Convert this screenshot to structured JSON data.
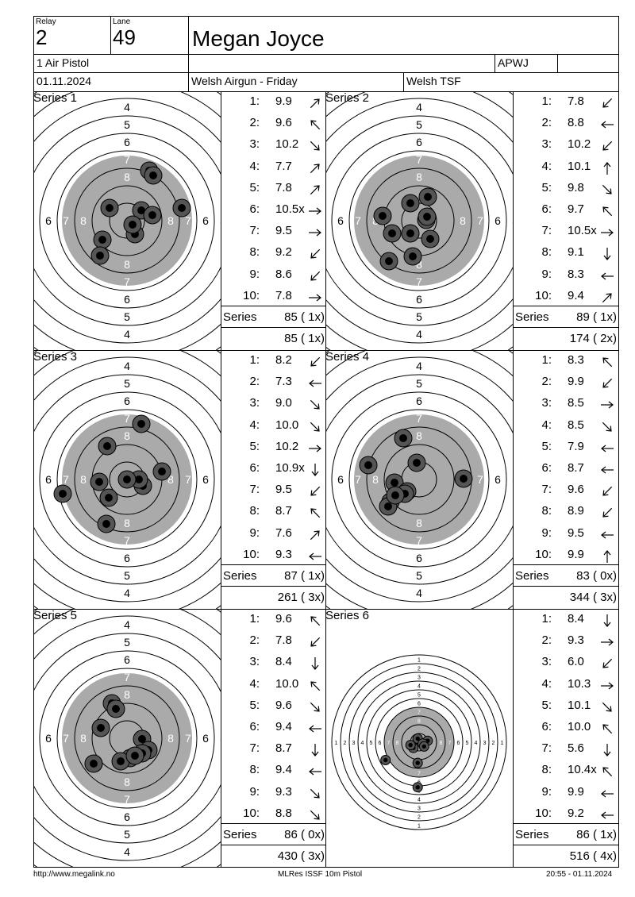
{
  "header": {
    "relay_label": "Relay",
    "relay": "2",
    "lane_label": "Lane",
    "lane": "49",
    "shooter_name": "Megan Joyce",
    "discipline": "1 Air Pistol",
    "club_code": "APWJ",
    "date": "01.11.2024",
    "competition": "Welsh Airgun - Friday",
    "organizer": "Welsh TSF"
  },
  "series": [
    {
      "title": "Series 1",
      "shots": [
        {
          "n": "1:",
          "v": "9.9",
          "dir": "ne"
        },
        {
          "n": "2:",
          "v": "9.6",
          "dir": "nw"
        },
        {
          "n": "3:",
          "v": "10.2",
          "dir": "se"
        },
        {
          "n": "4:",
          "v": "7.7",
          "dir": "ne"
        },
        {
          "n": "5:",
          "v": "7.8",
          "dir": "ne"
        },
        {
          "n": "6:",
          "v": "10.5x",
          "dir": "e"
        },
        {
          "n": "7:",
          "v": "9.5",
          "dir": "e"
        },
        {
          "n": "8:",
          "v": "9.2",
          "dir": "sw"
        },
        {
          "n": "9:",
          "v": "8.6",
          "dir": "sw"
        },
        {
          "n": "10:",
          "v": "7.8",
          "dir": "e"
        }
      ],
      "series_label": "Series",
      "series_total": "85 ( 1x)",
      "running_total": "85 ( 1x)"
    },
    {
      "title": "Series 2",
      "shots": [
        {
          "n": "1:",
          "v": "7.8",
          "dir": "sw"
        },
        {
          "n": "2:",
          "v": "8.8",
          "dir": "w"
        },
        {
          "n": "3:",
          "v": "10.2",
          "dir": "sw"
        },
        {
          "n": "4:",
          "v": "10.1",
          "dir": "n"
        },
        {
          "n": "5:",
          "v": "9.8",
          "dir": "se"
        },
        {
          "n": "6:",
          "v": "9.7",
          "dir": "nw"
        },
        {
          "n": "7:",
          "v": "10.5x",
          "dir": "e"
        },
        {
          "n": "8:",
          "v": "9.1",
          "dir": "s"
        },
        {
          "n": "9:",
          "v": "8.3",
          "dir": "w"
        },
        {
          "n": "10:",
          "v": "9.4",
          "dir": "ne"
        }
      ],
      "series_label": "Series",
      "series_total": "89 ( 1x)",
      "running_total": "174 ( 2x)"
    },
    {
      "title": "Series 3",
      "shots": [
        {
          "n": "1:",
          "v": "8.2",
          "dir": "sw"
        },
        {
          "n": "2:",
          "v": "7.3",
          "dir": "w"
        },
        {
          "n": "3:",
          "v": "9.0",
          "dir": "se"
        },
        {
          "n": "4:",
          "v": "10.0",
          "dir": "se"
        },
        {
          "n": "5:",
          "v": "10.2",
          "dir": "e"
        },
        {
          "n": "6:",
          "v": "10.9x",
          "dir": "s"
        },
        {
          "n": "7:",
          "v": "9.5",
          "dir": "sw"
        },
        {
          "n": "8:",
          "v": "8.7",
          "dir": "nw"
        },
        {
          "n": "9:",
          "v": "7.6",
          "dir": "ne"
        },
        {
          "n": "10:",
          "v": "9.3",
          "dir": "w"
        }
      ],
      "series_label": "Series",
      "series_total": "87 ( 1x)",
      "running_total": "261 ( 3x)"
    },
    {
      "title": "Series 4",
      "shots": [
        {
          "n": "1:",
          "v": "8.3",
          "dir": "nw"
        },
        {
          "n": "2:",
          "v": "9.9",
          "dir": "sw"
        },
        {
          "n": "3:",
          "v": "8.5",
          "dir": "e"
        },
        {
          "n": "4:",
          "v": "8.5",
          "dir": "se"
        },
        {
          "n": "5:",
          "v": "7.9",
          "dir": "w"
        },
        {
          "n": "6:",
          "v": "8.7",
          "dir": "w"
        },
        {
          "n": "7:",
          "v": "9.6",
          "dir": "sw"
        },
        {
          "n": "8:",
          "v": "8.9",
          "dir": "sw"
        },
        {
          "n": "9:",
          "v": "9.5",
          "dir": "w"
        },
        {
          "n": "10:",
          "v": "9.9",
          "dir": "n"
        }
      ],
      "series_label": "Series",
      "series_total": "83 ( 0x)",
      "running_total": "344 ( 3x)"
    },
    {
      "title": "Series 5",
      "shots": [
        {
          "n": "1:",
          "v": "9.6",
          "dir": "nw"
        },
        {
          "n": "2:",
          "v": "7.8",
          "dir": "sw"
        },
        {
          "n": "3:",
          "v": "8.4",
          "dir": "s"
        },
        {
          "n": "4:",
          "v": "10.0",
          "dir": "nw"
        },
        {
          "n": "5:",
          "v": "9.6",
          "dir": "se"
        },
        {
          "n": "6:",
          "v": "9.4",
          "dir": "w"
        },
        {
          "n": "7:",
          "v": "8.7",
          "dir": "s"
        },
        {
          "n": "8:",
          "v": "9.4",
          "dir": "w"
        },
        {
          "n": "9:",
          "v": "9.3",
          "dir": "se"
        },
        {
          "n": "10:",
          "v": "8.8",
          "dir": "se"
        }
      ],
      "series_label": "Series",
      "series_total": "86 ( 0x)",
      "running_total": "430 ( 3x)"
    },
    {
      "title": "Series 6",
      "shots": [
        {
          "n": "1:",
          "v": "8.4",
          "dir": "s"
        },
        {
          "n": "2:",
          "v": "9.3",
          "dir": "e"
        },
        {
          "n": "3:",
          "v": "6.0",
          "dir": "sw"
        },
        {
          "n": "4:",
          "v": "10.3",
          "dir": "e"
        },
        {
          "n": "5:",
          "v": "10.1",
          "dir": "se"
        },
        {
          "n": "6:",
          "v": "10.0",
          "dir": "nw"
        },
        {
          "n": "7:",
          "v": "5.6",
          "dir": "s"
        },
        {
          "n": "8:",
          "v": "10.4x",
          "dir": "nw"
        },
        {
          "n": "9:",
          "v": "9.9",
          "dir": "w"
        },
        {
          "n": "10:",
          "v": "9.2",
          "dir": "w"
        }
      ],
      "series_label": "Series",
      "series_total": "86 ( 1x)",
      "running_total": "516 ( 4x)"
    }
  ],
  "footer": {
    "url": "http://www.megalink.no",
    "program": "MLRes ISSF 10m Pistol",
    "printed": "20:55 - 01.11.2024"
  }
}
